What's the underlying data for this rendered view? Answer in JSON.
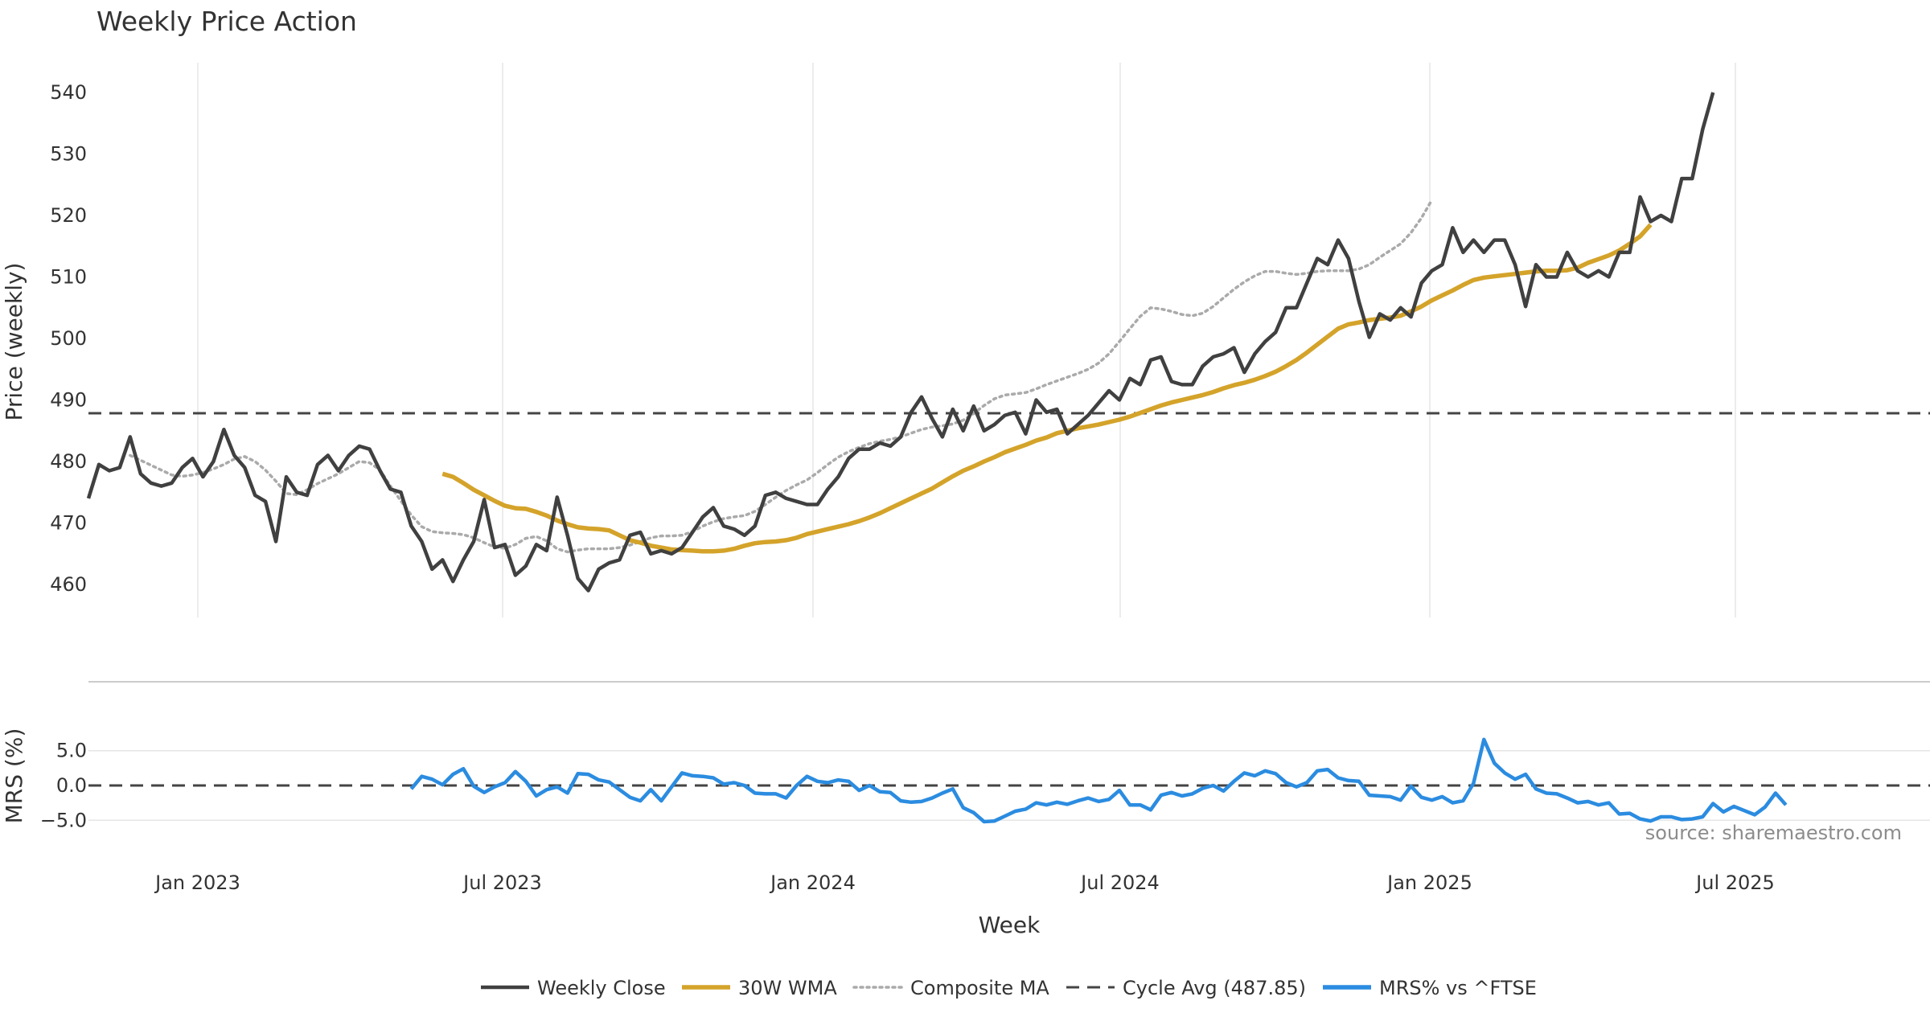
{
  "chart_data": {
    "type": "line",
    "title": "Weekly Price Action",
    "xlabel": "Week",
    "colors": {
      "close": "#404040",
      "wma": "#d4a32a",
      "composite": "#aaaaaa",
      "cycle": "#444444",
      "mrs": "#2b8ce0",
      "grid": "#e6e6e6",
      "divider": "#cccccc"
    },
    "x_ticks": [
      "Jan 2023",
      "Jul 2023",
      "Jan 2024",
      "Jul 2024",
      "Jan 2025",
      "Jul 2025"
    ],
    "price_panel": {
      "ylabel": "Price (weekly)",
      "ylim": [
        454,
        545
      ],
      "yticks": [
        "460",
        "470",
        "480",
        "490",
        "500",
        "510",
        "520",
        "530",
        "540"
      ],
      "weeks": 178,
      "series": [
        {
          "name": "Weekly Close",
          "start_week": 0,
          "values": [
            474,
            479.5,
            478.5,
            479,
            484,
            478,
            476.5,
            476,
            476.5,
            479,
            480.5,
            477.5,
            480,
            485.2,
            481,
            479,
            474.5,
            473.5,
            467,
            477.5,
            475,
            474.5,
            479.5,
            481,
            478.5,
            481,
            482.5,
            482,
            478.5,
            475.5,
            475,
            469.5,
            467,
            462.5,
            464,
            460.5,
            464,
            467,
            473.8,
            466,
            466.5,
            461.5,
            463,
            466.5,
            465.5,
            474.2,
            468,
            461,
            459,
            462.5,
            463.5,
            464,
            468,
            468.5,
            465,
            465.5,
            465,
            466,
            468.5,
            471,
            472.5,
            469.5,
            469,
            468,
            469.5,
            474.5,
            475,
            474,
            473.5,
            473,
            473,
            475.5,
            477.5,
            480.5,
            482,
            482,
            483,
            482.5,
            484,
            488,
            490.5,
            487,
            484,
            488.5,
            485,
            489,
            485,
            486,
            487.5,
            488,
            484.5,
            490,
            488,
            488.5,
            484.5,
            486,
            487.5,
            489.5,
            491.5,
            490,
            493.5,
            492.5,
            496.5,
            497,
            493,
            492.5,
            492.5,
            495.5,
            497,
            497.5,
            498.5,
            494.5,
            497.5,
            499.5,
            501,
            505,
            505,
            509,
            513,
            512,
            516,
            513,
            506,
            500.2,
            504,
            503,
            505,
            503.5,
            509,
            511,
            512,
            518,
            514,
            516,
            514,
            516,
            516,
            512,
            505.2,
            512,
            510,
            510,
            514,
            511,
            510,
            511,
            510,
            514,
            514,
            523,
            519,
            520,
            519,
            526,
            526,
            534,
            540
          ]
        },
        {
          "name": "30W WMA",
          "start_week": 34,
          "values": [
            478,
            477.5,
            476.5,
            475.4,
            474.5,
            473.6,
            472.8,
            472.4,
            472.3,
            471.8,
            471.2,
            470.4,
            469.8,
            469.3,
            469.1,
            469,
            468.8,
            468,
            467.2,
            466.8,
            466.3,
            466,
            465.7,
            465.6,
            465.5,
            465.4,
            465.4,
            465.5,
            465.8,
            466.3,
            466.7,
            466.9,
            467,
            467.2,
            467.6,
            468.2,
            468.6,
            469,
            469.4,
            469.8,
            470.3,
            470.9,
            471.6,
            472.4,
            473.2,
            474,
            474.8,
            475.6,
            476.6,
            477.6,
            478.5,
            479.2,
            480,
            480.7,
            481.5,
            482.1,
            482.7,
            483.4,
            483.9,
            484.6,
            485,
            485.4,
            485.7,
            486,
            486.4,
            486.8,
            487.3,
            487.9,
            488.5,
            489.1,
            489.6,
            490,
            490.4,
            490.8,
            491.3,
            491.9,
            492.4,
            492.8,
            493.3,
            493.9,
            494.6,
            495.5,
            496.5,
            497.7,
            499,
            500.3,
            501.6,
            502.3,
            502.6,
            503,
            503.2,
            503.4,
            503.7,
            504.4,
            505.2,
            506.2,
            507,
            507.8,
            508.7,
            509.5,
            509.9,
            510.1,
            510.3,
            510.5,
            510.7,
            510.9,
            511,
            511,
            511.1,
            511.5,
            512.3,
            512.9,
            513.5,
            514.3,
            515.4,
            516.6,
            518.5
          ]
        },
        {
          "name": "Composite MA",
          "start_week": 4,
          "values": [
            481,
            480.2,
            479.4,
            478.6,
            477.8,
            477.6,
            477.8,
            478.2,
            478.8,
            479.5,
            480.4,
            480.8,
            480,
            478.6,
            476.8,
            474.8,
            474.6,
            475.4,
            476.4,
            477.2,
            478,
            479,
            480,
            479.8,
            478.6,
            476,
            473.6,
            471.3,
            469.4,
            468.6,
            468.4,
            468.3,
            468.1,
            467.6,
            466.8,
            466.1,
            465.9,
            466.5,
            467.5,
            467.8,
            467.1,
            465.8,
            465.3,
            465.6,
            465.8,
            465.8,
            465.8,
            466,
            466.4,
            467,
            467.6,
            467.9,
            467.9,
            468,
            468.6,
            469.5,
            470.2,
            470.7,
            471,
            471.2,
            471.9,
            473,
            474.2,
            475.3,
            476.2,
            477,
            478.2,
            479.5,
            480.7,
            481.6,
            482.3,
            482.9,
            483.3,
            483.6,
            484,
            484.6,
            485.2,
            485.6,
            485.8,
            486.1,
            486.7,
            487.8,
            489.1,
            490.2,
            490.8,
            491,
            491.2,
            491.8,
            492.5,
            493.1,
            493.7,
            494.3,
            495,
            496,
            497.5,
            499.5,
            501.6,
            503.6,
            505,
            504.8,
            504.4,
            503.9,
            503.7,
            504.1,
            505.2,
            506.6,
            508,
            509.2,
            510.2,
            510.9,
            510.9,
            510.6,
            510.4,
            510.6,
            510.9,
            511,
            511,
            511,
            511.3,
            512,
            513.2,
            514.3,
            515.4,
            517.2,
            519.6,
            522.5
          ]
        },
        {
          "name": "Cycle Avg (487.85)",
          "constant": 487.85
        }
      ]
    },
    "mrs_panel": {
      "ylabel": "MRS (%)",
      "ylim": [
        -5.4,
        7.6
      ],
      "yticks": [
        "5.0",
        "0.0",
        "−5.0"
      ],
      "zero_line": 0,
      "series": [
        {
          "name": "MRS% vs ^FTSE",
          "start_week": 31,
          "values": [
            -0.5,
            1.3,
            0.9,
            0.1,
            1.6,
            2.4,
            -0.1,
            -1,
            -0.2,
            0.4,
            2,
            0.6,
            -1.5,
            -0.6,
            -0.2,
            -1.1,
            1.7,
            1.6,
            0.8,
            0.5,
            -0.6,
            -1.7,
            -2.2,
            -0.6,
            -2.2,
            -0.2,
            1.8,
            1.4,
            1.3,
            1.1,
            0.2,
            0.4,
            0,
            -1.1,
            -1.2,
            -1.2,
            -1.8,
            0,
            1.3,
            0.6,
            0.4,
            0.8,
            0.6,
            -0.7,
            0,
            -0.9,
            -1,
            -2.2,
            -2.4,
            -2.3,
            -1.8,
            -1.1,
            -0.5,
            -3.2,
            -3.9,
            -5.2,
            -5.1,
            -4.4,
            -3.7,
            -3.4,
            -2.5,
            -2.8,
            -2.4,
            -2.7,
            -2.2,
            -1.8,
            -2.3,
            -2,
            -0.7,
            -2.8,
            -2.8,
            -3.5,
            -1.4,
            -1,
            -1.5,
            -1.2,
            -0.4,
            0,
            -0.8,
            0.6,
            1.8,
            1.4,
            2.1,
            1.7,
            0.4,
            -0.2,
            0.4,
            2.1,
            2.3,
            1.1,
            0.7,
            0.6,
            -1.4,
            -1.5,
            -1.6,
            -2.1,
            -0.1,
            -1.7,
            -2.1,
            -1.6,
            -2.5,
            -2.2,
            0.3,
            6.6,
            3.2,
            1.8,
            0.9,
            1.6,
            -0.5,
            -1.1,
            -1.2,
            -1.8,
            -2.5,
            -2.3,
            -2.8,
            -2.5,
            -4.1,
            -4,
            -4.8,
            -5.1,
            -4.5,
            -4.5,
            -4.9,
            -4.8,
            -4.5,
            -2.6,
            -3.8,
            -3,
            -3.6,
            -4.2,
            -3.1,
            -1.1,
            -2.8
          ]
        }
      ]
    },
    "legend": [
      {
        "name": "Weekly Close",
        "style": "solid"
      },
      {
        "name": "30W WMA",
        "style": "solid"
      },
      {
        "name": "Composite MA",
        "style": "dotted"
      },
      {
        "name": "Cycle Avg (487.85)",
        "style": "dashed"
      },
      {
        "name": "MRS% vs ^FTSE",
        "style": "solid"
      }
    ],
    "watermark": "source: sharemaestro.com"
  }
}
